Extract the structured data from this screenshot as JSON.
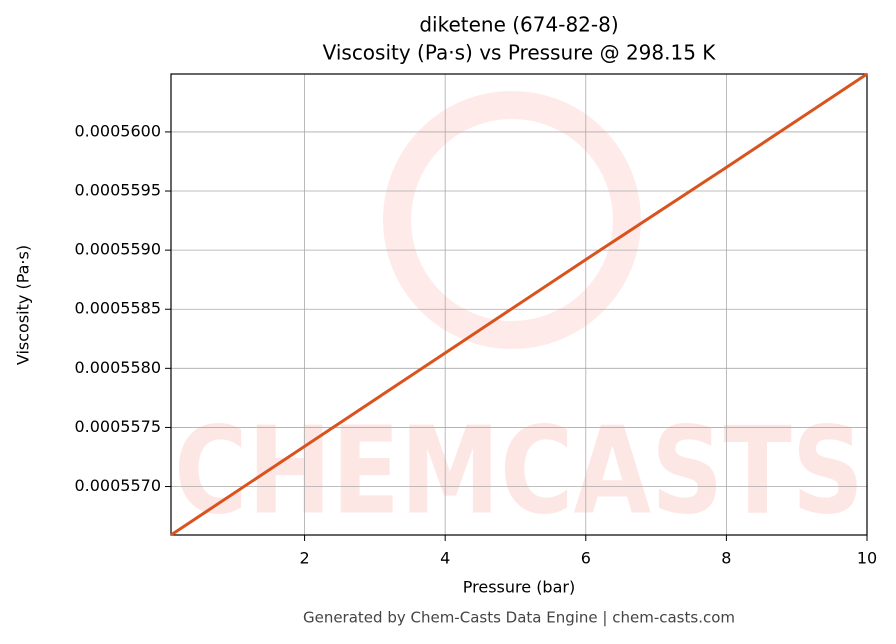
{
  "chart_data": {
    "type": "line",
    "title": "diketene (674-82-8)",
    "subtitle": "Viscosity (Pa·s) vs Pressure @ 298.15 K",
    "x_label": "Pressure (bar)",
    "y_label": "Viscosity (Pa·s)",
    "footer": "Generated by Chem-Casts Data Engine | chem-casts.com",
    "watermark": "CHEMCASTS",
    "x": [
      0.1,
      2,
      4,
      6,
      8,
      10
    ],
    "series": [
      {
        "name": "Viscosity",
        "color": "#d9531e",
        "values": [
          0.00055659,
          0.00055734,
          0.00055813,
          0.00055892,
          0.0005597,
          0.00056049
        ]
      }
    ],
    "xlim": [
      0.1,
      10
    ],
    "ylim": [
      0.00055659,
      0.00056049
    ],
    "xticks": [
      2,
      4,
      6,
      8,
      10
    ],
    "yticks": [
      {
        "value": 0.000557,
        "label": "0.0005570"
      },
      {
        "value": 0.0005575,
        "label": "0.0005575"
      },
      {
        "value": 0.000558,
        "label": "0.0005580"
      },
      {
        "value": 0.0005585,
        "label": "0.0005585"
      },
      {
        "value": 0.000559,
        "label": "0.0005590"
      },
      {
        "value": 0.0005595,
        "label": "0.0005595"
      },
      {
        "value": 0.00056,
        "label": "0.0005600"
      }
    ],
    "grid": true
  }
}
